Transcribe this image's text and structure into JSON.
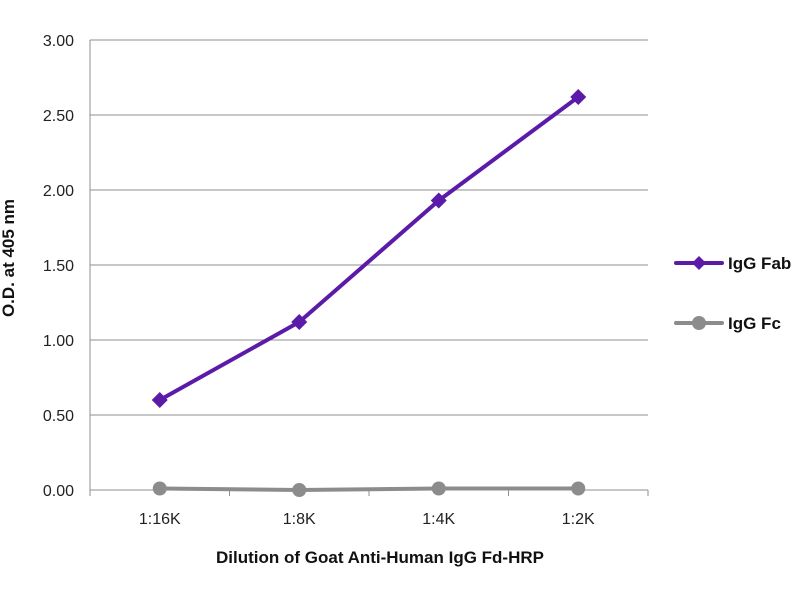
{
  "chart_data": {
    "type": "line",
    "title": "",
    "xlabel": "Dilution of Goat Anti-Human IgG Fd-HRP",
    "ylabel": "O.D. at 405 nm",
    "categories": [
      "1:16K",
      "1:8K",
      "1:4K",
      "1:2K"
    ],
    "ylim": [
      0,
      3
    ],
    "yticks": [
      "0.00",
      "0.50",
      "1.00",
      "1.50",
      "2.00",
      "2.50",
      "3.00"
    ],
    "grid": true,
    "legend_position": "right",
    "series": [
      {
        "name": "IgG Fab",
        "values": [
          0.6,
          1.12,
          1.93,
          2.62
        ],
        "color": "#5b1aa8",
        "marker": "diamond"
      },
      {
        "name": "IgG Fc",
        "values": [
          0.01,
          0.0,
          0.01,
          0.01
        ],
        "color": "#8c8c8c",
        "marker": "circle"
      }
    ]
  }
}
